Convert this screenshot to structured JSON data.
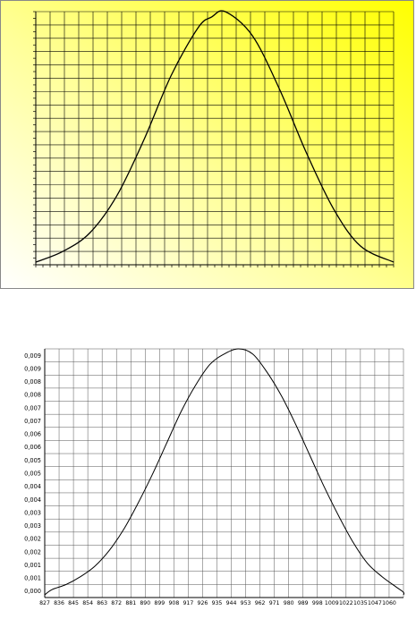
{
  "charts": [
    {
      "id": "top",
      "background_gradient": [
        "#ffff00",
        "#ffffff"
      ],
      "curve_color": "#000000",
      "grid_color": "#000000",
      "grid": true,
      "axis_labels_shown": false
    },
    {
      "id": "bottom",
      "background": "#ffffff",
      "curve_color": "#000000",
      "grid_color": "#555555",
      "grid": true
    }
  ],
  "chart_data": [
    {
      "type": "line",
      "title": "",
      "xlabel": "",
      "ylabel": "",
      "xlim": [
        827,
        1065
      ],
      "ylim": [
        0,
        0.0095
      ],
      "series": [
        {
          "x": [
            827,
            845,
            863,
            881,
            899,
            917,
            935,
            944,
            953,
            971,
            989,
            1007,
            1025,
            1043,
            1065
          ],
          "values": [
            0.0001,
            0.0005,
            0.0012,
            0.0026,
            0.0047,
            0.0071,
            0.0089,
            0.0093,
            0.0095,
            0.0086,
            0.0066,
            0.0042,
            0.0021,
            0.0007,
            0.0001
          ]
        }
      ]
    },
    {
      "type": "line",
      "title": "",
      "xlabel": "",
      "ylabel": "",
      "x_tick_labels": [
        "827",
        "836",
        "845",
        "854",
        "863",
        "872",
        "881",
        "890",
        "899",
        "908",
        "917",
        "926",
        "935",
        "944",
        "953",
        "962",
        "971",
        "980",
        "989",
        "998",
        "1009",
        "1022",
        "1035",
        "1047",
        "1060"
      ],
      "y_tick_labels": [
        "0,000",
        "0,001",
        "0,001",
        "0,002",
        "0,002",
        "0,003",
        "0,003",
        "0,004",
        "0,004",
        "0,005",
        "0,005",
        "0,006",
        "0,006",
        "0,007",
        "0,007",
        "0,008",
        "0,008",
        "0,009",
        "0,009"
      ],
      "ylim": [
        0,
        0.0095
      ],
      "series": [
        {
          "x": [
            827,
            836,
            845,
            854,
            863,
            872,
            881,
            890,
            899,
            908,
            917,
            926,
            935,
            944,
            953,
            962,
            971,
            980,
            989,
            998,
            1007,
            1016,
            1025,
            1034,
            1043,
            1052,
            1061,
            1070
          ],
          "values": [
            0.0001,
            0.0003,
            0.0005,
            0.0008,
            0.0012,
            0.0018,
            0.0026,
            0.0036,
            0.0047,
            0.0059,
            0.0071,
            0.0081,
            0.0089,
            0.0093,
            0.0095,
            0.0093,
            0.0086,
            0.0077,
            0.0066,
            0.0054,
            0.0042,
            0.0031,
            0.0021,
            0.0013,
            0.0008,
            0.0004,
            0.0002,
            0.0001
          ]
        }
      ]
    }
  ]
}
